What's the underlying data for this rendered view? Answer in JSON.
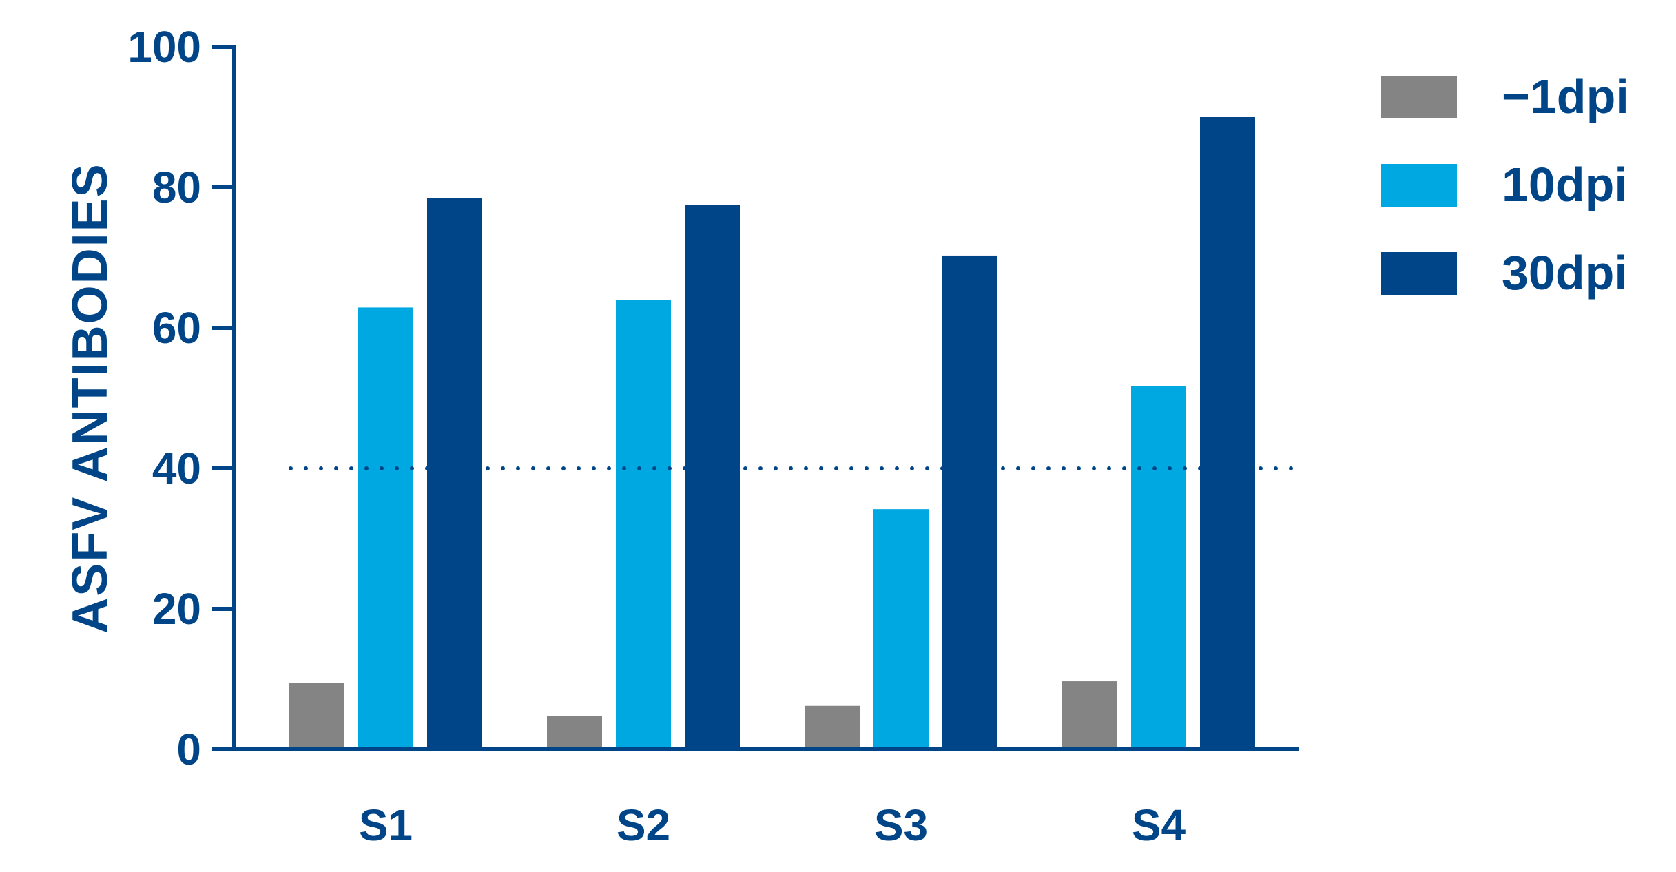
{
  "chart_data": {
    "type": "bar",
    "title": "",
    "xlabel": "",
    "ylabel": "ASFV ANTIBODIES",
    "categories": [
      "S1",
      "S2",
      "S3",
      "S4"
    ],
    "ylim": [
      0,
      100
    ],
    "yticks": [
      "0",
      "20",
      "40",
      "60",
      "80",
      "100"
    ],
    "series": [
      {
        "name": "−1dpi",
        "color": "#848484",
        "values": [
          9.5,
          4.8,
          6.2,
          9.7
        ]
      },
      {
        "name": "10dpi",
        "color": "#00a8e1",
        "values": [
          62.9,
          64.0,
          34.2,
          51.7
        ]
      },
      {
        "name": "30dpi",
        "color": "#004587",
        "values": [
          78.5,
          77.5,
          70.3,
          90.0
        ]
      }
    ],
    "reference_line": {
      "y": 40,
      "style": "dotted"
    },
    "grid": false,
    "legend_position": "top-right",
    "axis_color": "#004587"
  }
}
